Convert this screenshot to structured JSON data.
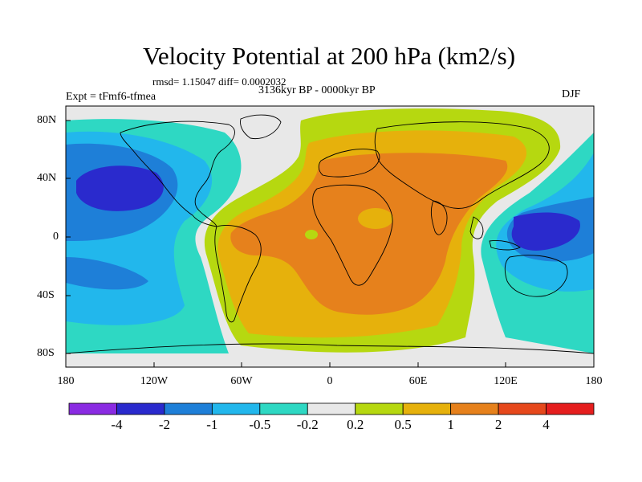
{
  "title": "Velocity Potential at 200 hPa (km2/s)",
  "stats": "rmsd= 1.15047 diff= 0.0002032",
  "experiment": "Expt = tFmf6-tfmea",
  "period": "3136kyr BP - 0000kyr BP",
  "season": "DJF",
  "lat_labels": [
    "80N",
    "40N",
    "0",
    "40S",
    "80S"
  ],
  "lon_labels": [
    "180",
    "120W",
    "60W",
    "0",
    "60E",
    "120E",
    "180"
  ],
  "colorbar": {
    "levels": [
      "-4",
      "-2",
      "-1",
      "-0.5",
      "-0.2",
      "0.2",
      "0.5",
      "1",
      "2",
      "4"
    ],
    "colors": [
      "#8a2be2",
      "#2a2acd",
      "#1e7fd8",
      "#22b7ec",
      "#2ed8c3",
      "#e8e8e8",
      "#b6d810",
      "#e6b10c",
      "#e6811c",
      "#e6481c",
      "#e51e1e"
    ]
  },
  "chart_data": {
    "type": "heatmap",
    "title": "Velocity Potential at 200 hPa (km2/s)",
    "x_range": [
      -180,
      180
    ],
    "y_range": [
      -90,
      90
    ],
    "contour_levels": [
      -4,
      -2,
      -1,
      -0.5,
      -0.2,
      0.2,
      0.5,
      1,
      2,
      4
    ],
    "grid": false
  }
}
